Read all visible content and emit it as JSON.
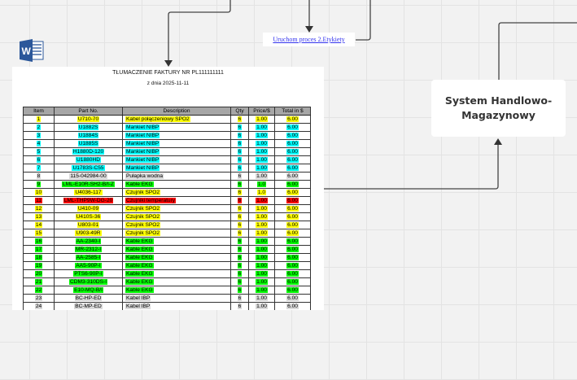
{
  "link_label": "Uruchom proces 2.Etykiety",
  "system_box": "System Handlowo-Magazynowy",
  "icon": "microsoft-word-icon",
  "document": {
    "title": "TŁUMACZENIE FAKTURY NR PL111111111",
    "date": "z dnia 2025-11-11",
    "headers": [
      "Item",
      "Part No.",
      "Description",
      "Qty",
      "Price/$",
      "Total in $"
    ],
    "rows": [
      [
        "1",
        "U710-70",
        "Kabel połączeniowy SPO2",
        "6",
        "1.00",
        "6.00",
        "#ffff00"
      ],
      [
        "2",
        "U1882S",
        "Mankiet NIBP",
        "6",
        "1.00",
        "6.00",
        "#00ffff"
      ],
      [
        "3",
        "U1884S",
        "Mankiet NIBP",
        "6",
        "1.00",
        "6.00",
        "#00ffff"
      ],
      [
        "4",
        "U1885S",
        "Mankiet NIBP",
        "6",
        "1.00",
        "6.00",
        "#00ffff"
      ],
      [
        "5",
        "H1880D-120",
        "Mankiet NIBP",
        "6",
        "1.00",
        "6.00",
        "#00ffff"
      ],
      [
        "6",
        "U1880HD",
        "Mankiet NIBP",
        "6",
        "1.00",
        "6.00",
        "#00ffff"
      ],
      [
        "7",
        "U1783S-C55",
        "Mankiet NIBP",
        "6",
        "1.00",
        "6.00",
        "#00ffff"
      ],
      [
        "8",
        "115-042984-00",
        "Pułapka wodna",
        "6",
        "1.00",
        "6.00",
        "#d9d9d9"
      ],
      [
        "9",
        "LML-E10R-SH2-B/I-Z",
        "Kable EKG",
        "6",
        "1.0",
        "6.00",
        "#00ff00"
      ],
      [
        "10",
        "U4036-117",
        "Czujnik SPO2",
        "6",
        "1.0",
        "6.00",
        "#ffff00"
      ],
      [
        "11",
        "LML-THP9W-DG-20",
        "Czujniki temperatury",
        "6",
        "1.00",
        "6.00",
        "#ff0000"
      ],
      [
        "12",
        "U410-09",
        "Czujnik SPO2",
        "6",
        "1.00",
        "6.00",
        "#ffff00"
      ],
      [
        "13",
        "U410S-36",
        "Czujnik SPO2",
        "6",
        "1.00",
        "6.00",
        "#ffff00"
      ],
      [
        "14",
        "U803-01",
        "Czujnik SPO2",
        "6",
        "1.00",
        "6.00",
        "#ffff00"
      ],
      [
        "15",
        "U903-49R",
        "Czujnik SPO2",
        "6",
        "1.00",
        "6.00",
        "#ffff00"
      ],
      [
        "16",
        "AA-2340-I",
        "Kable EKG",
        "6",
        "1.00",
        "6.00",
        "#00ff00"
      ],
      [
        "17",
        "MR-2312-I",
        "Kable EKG",
        "6",
        "1.00",
        "6.00",
        "#00ff00"
      ],
      [
        "18",
        "AA-2585-I",
        "Kable EKG",
        "6",
        "1.00",
        "6.00",
        "#00ff00"
      ],
      [
        "19",
        "AA5-90P-I",
        "Kable EKG",
        "6",
        "1.00",
        "6.00",
        "#00ff00"
      ],
      [
        "20",
        "PTS6-90P-I",
        "Kable EKG",
        "6",
        "1.00",
        "6.00",
        "#00ff00"
      ],
      [
        "21",
        "CDM3-310DS-I",
        "Kable EKG",
        "6",
        "1.00",
        "6.00",
        "#00ff00"
      ],
      [
        "22",
        "E10-MQ-B/I",
        "Kable EKG",
        "6",
        "1.00",
        "6.00",
        "#00ff00"
      ],
      [
        "23",
        "BC-HP-ED",
        "Kabel IBP",
        "6",
        "1.00",
        "6.00",
        "#d9d9d9"
      ],
      [
        "24",
        "BC-MP-ED",
        "Kabel IBP",
        "6",
        "1.00",
        "6.00",
        "#d9d9d9"
      ]
    ]
  }
}
